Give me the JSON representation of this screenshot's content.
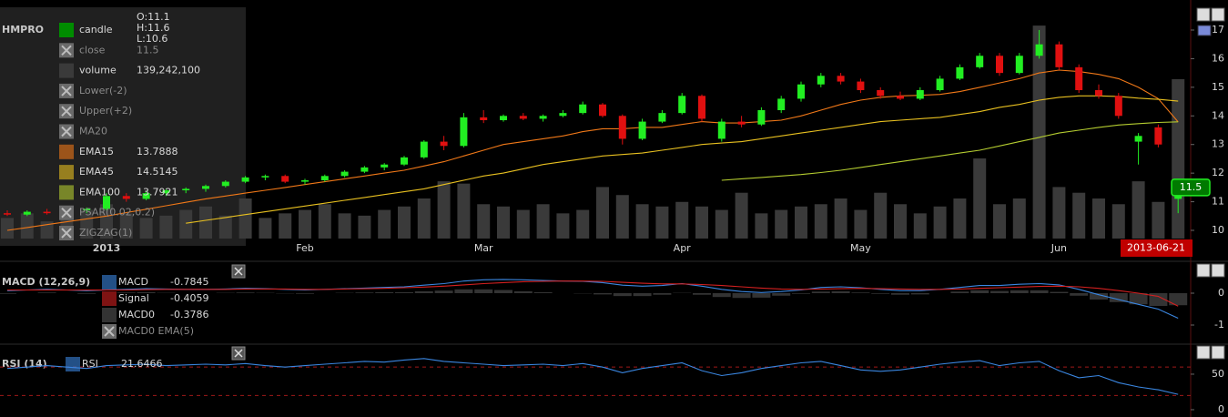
{
  "chart_data": [
    {
      "type": "candlestick",
      "symbol": "HMPRO",
      "categories": [
        null,
        null,
        null,
        null,
        null,
        "2013",
        null,
        null,
        null,
        null,
        null,
        null,
        null,
        null,
        null,
        "Feb",
        null,
        null,
        null,
        null,
        null,
        null,
        null,
        null,
        "Mar",
        null,
        null,
        null,
        null,
        null,
        null,
        null,
        null,
        null,
        "Apr",
        null,
        null,
        null,
        null,
        null,
        null,
        null,
        null,
        "May",
        null,
        null,
        null,
        null,
        null,
        null,
        null,
        null,
        null,
        "Jun",
        null,
        null,
        null,
        null,
        null,
        null
      ],
      "open": [
        10.6,
        10.55,
        10.65,
        10.6,
        10.7,
        10.75,
        11.2,
        11.1,
        11.3,
        11.4,
        11.45,
        11.55,
        11.7,
        11.85,
        11.9,
        11.7,
        11.75,
        11.9,
        12.05,
        12.2,
        12.3,
        12.55,
        13.1,
        12.95,
        13.95,
        13.85,
        14.0,
        13.9,
        14.0,
        14.1,
        14.4,
        14.0,
        13.2,
        13.8,
        14.1,
        14.7,
        13.2,
        13.8,
        13.7,
        14.2,
        14.6,
        15.1,
        15.4,
        15.2,
        14.9,
        14.7,
        14.6,
        14.9,
        15.3,
        15.7,
        16.1,
        15.5,
        16.1,
        16.5,
        15.7,
        14.9,
        14.7,
        13.1,
        13.6,
        11.1
      ],
      "high": [
        10.7,
        10.7,
        10.75,
        10.7,
        10.8,
        11.3,
        11.3,
        11.35,
        11.45,
        11.5,
        11.6,
        11.75,
        11.9,
        11.95,
        11.95,
        11.8,
        11.95,
        12.1,
        12.25,
        12.35,
        12.6,
        13.15,
        13.3,
        14.1,
        14.2,
        14.05,
        14.1,
        14.05,
        14.2,
        14.5,
        14.45,
        14.05,
        13.9,
        14.2,
        14.8,
        14.75,
        13.9,
        14.0,
        14.3,
        14.7,
        15.2,
        15.5,
        15.5,
        15.3,
        15.0,
        14.85,
        15.0,
        15.4,
        15.8,
        16.2,
        16.2,
        16.2,
        17.0,
        16.6,
        15.8,
        15.1,
        14.8,
        13.4,
        13.7,
        11.6
      ],
      "low": [
        10.5,
        10.5,
        10.55,
        10.5,
        10.6,
        10.7,
        11.0,
        11.05,
        11.2,
        11.3,
        11.35,
        11.5,
        11.65,
        11.75,
        11.65,
        11.6,
        11.7,
        11.85,
        12.0,
        12.1,
        12.25,
        12.5,
        12.8,
        12.9,
        13.75,
        13.8,
        13.85,
        13.8,
        13.95,
        14.05,
        13.95,
        13.0,
        13.15,
        13.75,
        14.05,
        13.8,
        13.1,
        13.6,
        13.65,
        14.1,
        14.5,
        15.0,
        15.1,
        14.8,
        14.6,
        14.55,
        14.55,
        14.85,
        15.25,
        15.65,
        15.4,
        15.45,
        16.0,
        15.6,
        14.8,
        14.6,
        13.9,
        12.3,
        12.9,
        10.6
      ],
      "close": [
        10.55,
        10.65,
        10.6,
        10.7,
        10.75,
        11.2,
        11.1,
        11.3,
        11.4,
        11.45,
        11.55,
        11.7,
        11.85,
        11.9,
        11.7,
        11.75,
        11.9,
        12.05,
        12.2,
        12.3,
        12.55,
        13.1,
        12.95,
        13.95,
        13.85,
        14.0,
        13.9,
        14.0,
        14.1,
        14.4,
        14.0,
        13.2,
        13.8,
        14.1,
        14.7,
        13.9,
        13.8,
        13.7,
        14.2,
        14.6,
        15.1,
        15.4,
        15.2,
        14.9,
        14.7,
        14.6,
        14.9,
        15.3,
        15.7,
        16.1,
        15.5,
        16.1,
        16.5,
        15.7,
        14.9,
        14.7,
        14.0,
        13.3,
        13.0,
        11.5
      ],
      "up_color": "#22ee22",
      "down_color": "#e01010",
      "series": [
        {
          "name": "candle",
          "color": "#008c00"
        },
        {
          "name": "close",
          "hidden": true,
          "readout": 11.5
        },
        {
          "name": "volume",
          "type": "bar",
          "color": "#3a3a3a",
          "vlim": [
            0,
            202000000
          ],
          "readout": {
            "value": 139242100,
            "label": "139,242,100"
          },
          "values": [
            18000000,
            22000000,
            15000000,
            20000000,
            25000000,
            30000000,
            22000000,
            18000000,
            20000000,
            25000000,
            28000000,
            20000000,
            35000000,
            18000000,
            22000000,
            25000000,
            30000000,
            22000000,
            20000000,
            25000000,
            28000000,
            35000000,
            50000000,
            48000000,
            30000000,
            28000000,
            25000000,
            30000000,
            22000000,
            25000000,
            45000000,
            38000000,
            30000000,
            28000000,
            32000000,
            28000000,
            25000000,
            40000000,
            22000000,
            25000000,
            28000000,
            30000000,
            35000000,
            25000000,
            40000000,
            30000000,
            22000000,
            28000000,
            35000000,
            70000000,
            30000000,
            35000000,
            186000000,
            45000000,
            40000000,
            35000000,
            30000000,
            50000000,
            32000000,
            139242100
          ]
        },
        {
          "name": "Lower(-2)",
          "hidden": true
        },
        {
          "name": "Upper(+2)",
          "hidden": true
        },
        {
          "name": "MA20",
          "hidden": true
        },
        {
          "name": "EMA15",
          "type": "line",
          "color": "#f07818",
          "readout": 13.7888,
          "values": [
            10.0,
            10.1,
            10.2,
            10.3,
            10.4,
            10.5,
            10.62,
            10.74,
            10.86,
            10.98,
            11.1,
            11.2,
            11.3,
            11.4,
            11.5,
            11.6,
            11.7,
            11.8,
            11.9,
            12.0,
            12.1,
            12.25,
            12.4,
            12.6,
            12.8,
            13.0,
            13.1,
            13.2,
            13.3,
            13.45,
            13.55,
            13.55,
            13.6,
            13.6,
            13.7,
            13.8,
            13.75,
            13.75,
            13.8,
            13.85,
            14.0,
            14.2,
            14.4,
            14.55,
            14.65,
            14.7,
            14.72,
            14.75,
            14.85,
            15.0,
            15.15,
            15.3,
            15.5,
            15.6,
            15.55,
            15.45,
            15.3,
            15.0,
            14.6,
            13.7888
          ]
        },
        {
          "name": "EMA45",
          "type": "line",
          "color": "#e8c020",
          "readout": 14.5145,
          "values": [
            null,
            null,
            null,
            null,
            null,
            null,
            null,
            null,
            null,
            10.25,
            10.35,
            10.45,
            10.55,
            10.65,
            10.75,
            10.85,
            10.95,
            11.05,
            11.15,
            11.25,
            11.35,
            11.45,
            11.6,
            11.75,
            11.9,
            12.0,
            12.15,
            12.3,
            12.4,
            12.5,
            12.6,
            12.65,
            12.7,
            12.8,
            12.9,
            13.0,
            13.05,
            13.1,
            13.2,
            13.3,
            13.4,
            13.5,
            13.6,
            13.7,
            13.8,
            13.85,
            13.9,
            13.95,
            14.05,
            14.15,
            14.3,
            14.4,
            14.55,
            14.65,
            14.7,
            14.7,
            14.68,
            14.62,
            14.58,
            14.5145
          ]
        },
        {
          "name": "EMA100",
          "type": "line",
          "color": "#b4cc30",
          "readout": 13.7921,
          "values": [
            null,
            null,
            null,
            null,
            null,
            null,
            null,
            null,
            null,
            null,
            null,
            null,
            null,
            null,
            null,
            null,
            null,
            null,
            null,
            null,
            null,
            null,
            null,
            null,
            null,
            null,
            null,
            null,
            null,
            null,
            null,
            null,
            null,
            null,
            null,
            null,
            11.75,
            11.8,
            11.85,
            11.9,
            11.95,
            12.02,
            12.1,
            12.2,
            12.3,
            12.4,
            12.5,
            12.6,
            12.7,
            12.8,
            12.95,
            13.1,
            13.25,
            13.4,
            13.5,
            13.6,
            13.68,
            13.73,
            13.77,
            13.7921
          ]
        },
        {
          "name": "PSAR(0.02,0.2)",
          "hidden": true
        },
        {
          "name": "ZIGZAG(1)",
          "hidden": true
        }
      ],
      "ohlc_readout": [
        {
          "value": 11.1,
          "label": "O:11.1"
        },
        {
          "value": 11.6,
          "label": "H:11.6"
        },
        {
          "value": 10.6,
          "label": "L:10.6"
        }
      ],
      "last_price": 11.5,
      "last_price_color": "#22ee22",
      "cursor_date": "2013-06-21",
      "ylim": [
        9.714,
        17.795
      ],
      "yticks": [
        10,
        11,
        12,
        13,
        14,
        15,
        16,
        17
      ]
    },
    {
      "type": "line",
      "title": "MACD (12,26,9)",
      "series": [
        {
          "name": "MACD",
          "type": "line",
          "color": "#3a86e0",
          "readout": -0.7845,
          "values": [
            0.08,
            0.1,
            0.12,
            0.1,
            0.08,
            0.1,
            0.12,
            0.14,
            0.13,
            0.12,
            0.12,
            0.13,
            0.15,
            0.14,
            0.12,
            0.1,
            0.12,
            0.14,
            0.16,
            0.18,
            0.2,
            0.25,
            0.3,
            0.38,
            0.42,
            0.43,
            0.42,
            0.4,
            0.38,
            0.37,
            0.33,
            0.25,
            0.22,
            0.24,
            0.3,
            0.22,
            0.12,
            0.05,
            0.02,
            0.05,
            0.1,
            0.18,
            0.2,
            0.17,
            0.12,
            0.08,
            0.08,
            0.12,
            0.18,
            0.24,
            0.24,
            0.28,
            0.3,
            0.26,
            0.12,
            -0.05,
            -0.2,
            -0.35,
            -0.5,
            -0.7845
          ]
        },
        {
          "name": "Signal",
          "type": "line",
          "color": "#d42020",
          "readout": -0.4059,
          "values": [
            0.1,
            0.1,
            0.1,
            0.1,
            0.1,
            0.1,
            0.1,
            0.11,
            0.12,
            0.12,
            0.12,
            0.12,
            0.13,
            0.13,
            0.13,
            0.12,
            0.12,
            0.13,
            0.14,
            0.15,
            0.17,
            0.19,
            0.22,
            0.26,
            0.3,
            0.33,
            0.36,
            0.37,
            0.38,
            0.38,
            0.37,
            0.34,
            0.31,
            0.29,
            0.29,
            0.27,
            0.24,
            0.2,
            0.16,
            0.13,
            0.12,
            0.13,
            0.14,
            0.15,
            0.14,
            0.13,
            0.12,
            0.12,
            0.13,
            0.15,
            0.17,
            0.19,
            0.21,
            0.22,
            0.2,
            0.15,
            0.08,
            0,
            -0.1,
            -0.4059
          ]
        },
        {
          "name": "MACD0",
          "type": "bar",
          "color": "#333333",
          "readout": -0.3786,
          "values": [
            -0.02,
            0,
            0.02,
            0,
            -0.02,
            0,
            0.02,
            0.03,
            0.01,
            0,
            0,
            0.01,
            0.02,
            0.01,
            -0.01,
            -0.02,
            0,
            0.01,
            0.02,
            0.03,
            0.03,
            0.06,
            0.08,
            0.12,
            0.12,
            0.1,
            0.06,
            0.03,
            0,
            -0.01,
            -0.04,
            -0.09,
            -0.09,
            -0.05,
            0.01,
            -0.05,
            -0.12,
            -0.15,
            -0.14,
            -0.08,
            -0.02,
            0.05,
            0.06,
            0.02,
            -0.02,
            -0.05,
            -0.04,
            0,
            0.05,
            0.09,
            0.07,
            0.09,
            0.09,
            0.04,
            -0.08,
            -0.2,
            -0.28,
            -0.35,
            -0.4,
            -0.3786
          ]
        },
        {
          "name": "MACD0 EMA(5)",
          "hidden": true
        }
      ],
      "ylim": [
        -1.514,
        0.914
      ],
      "yticks": [
        -1,
        0
      ]
    },
    {
      "type": "line",
      "title": "RSI (14)",
      "series": [
        {
          "name": "RSI",
          "type": "line",
          "color": "#3a86e0",
          "readout": 21.6466,
          "values": [
            58,
            60,
            62,
            60,
            58,
            62,
            63,
            64,
            62,
            63,
            64,
            63,
            65,
            62,
            60,
            62,
            64,
            66,
            68,
            67,
            70,
            72,
            68,
            66,
            64,
            62,
            63,
            64,
            62,
            65,
            60,
            52,
            58,
            62,
            66,
            55,
            48,
            52,
            58,
            62,
            66,
            68,
            62,
            56,
            54,
            56,
            60,
            64,
            67,
            69,
            62,
            66,
            68,
            55,
            45,
            48,
            38,
            32,
            28,
            21.6466
          ]
        }
      ],
      "levels": [
        20,
        60
      ],
      "level_color": "#a01818",
      "ylim": [
        -10.3,
        89.7
      ],
      "yticks": [
        0,
        50
      ]
    }
  ]
}
